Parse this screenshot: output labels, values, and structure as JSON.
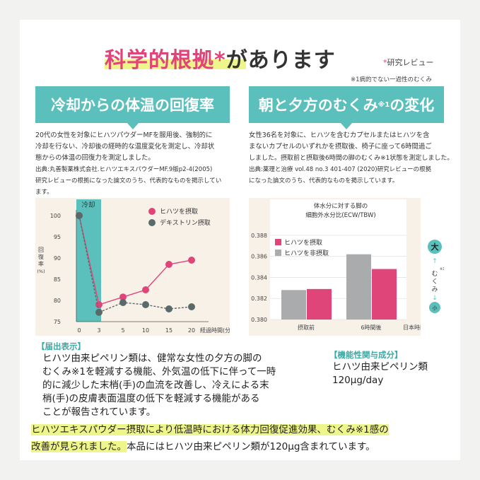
{
  "header": {
    "title_pink": "科学的根拠",
    "title_star": "*",
    "title_rest": "があります",
    "review_star": "*",
    "review_label": "研究レビュー",
    "footnote": "※1病的でない一過性のむくみ"
  },
  "left_section": {
    "banner": "冷却からの体温の回復率",
    "para_lines": [
      "20代の女性を対象にヒハツパウダーMFを服用後、強制的に",
      "冷却を行ない、冷却後の経時的な温度変化を測定し、冷却状",
      "態からの体温の回復力を測定しました。"
    ],
    "source_lines": [
      "出典:丸善製薬株式会社.ヒハツエキスパウダーMF.9版p2-4(2005)",
      "研究レビューの根拠になった論文のうち、代表的なものを掲示してい",
      "ます。"
    ]
  },
  "right_section": {
    "banner_a": "朝と夕方のむくみ",
    "banner_sup": "※1",
    "banner_b": "の変化",
    "para_lines": [
      "女性36名を対象に、ヒハツを含むカプセルまたはヒハツを含",
      "まないカプセルのいずれかを摂取後、椅子に座って6時間過ご",
      "しました。摂取前と摂取後6時間の脚のむくみ※1状態を測定しました。"
    ],
    "source_lines": [
      "出典:薬理と治療 vol.48 no.3 401-407 (2020)研究レビューの根拠",
      "になった論文のうち、代表的なものを掲示しています。"
    ]
  },
  "chart_data": [
    {
      "type": "line",
      "x": [
        0,
        3,
        5,
        10,
        15,
        20
      ],
      "xticks": [
        "0",
        "3",
        "5",
        "10",
        "15",
        "20"
      ],
      "xlabel": "経過時間(分)",
      "ylabel": "回復率(%)",
      "ylabel_chars": [
        "回",
        "復",
        "率"
      ],
      "ylabel_unit": "(%)",
      "ylim": [
        75,
        100
      ],
      "yticks": [
        75,
        80,
        85,
        90,
        95,
        100
      ],
      "shaded_region_label": "冷却",
      "shaded_region_x": [
        0,
        3
      ],
      "legend_position": "top-right",
      "series": [
        {
          "name": "ヒハツを摂取",
          "values": [
            100,
            79,
            80.8,
            82.5,
            88.5,
            89.5
          ],
          "color": "#e0457a",
          "style": "solid"
        },
        {
          "name": "デキストリン摂取",
          "values": [
            100,
            77.2,
            79.5,
            79,
            78,
            78.5
          ],
          "color": "#5a6a6a",
          "style": "dashed"
        }
      ]
    },
    {
      "type": "bar",
      "title_lines": [
        "体水分に対する脚の",
        "細胞外水分比(ECW/TBW)"
      ],
      "categories": [
        "摂取前",
        "6時間後"
      ],
      "xlabel": "日本時間",
      "ylim": [
        0.38,
        0.389
      ],
      "yticks": [
        "0.380",
        "0.382",
        "0.384",
        "0.386",
        "0.388"
      ],
      "legend_position": "top-left",
      "series": [
        {
          "name": "ヒハツを摂取",
          "values": [
            0.3829,
            0.3848
          ],
          "color": "#e0457a"
        },
        {
          "name": "ヒハツを非摂取",
          "values": [
            0.3828,
            0.3862
          ],
          "color": "#a9abad"
        }
      ],
      "side_scale": {
        "top": "大",
        "bottom": "小",
        "middle": "むくみ",
        "sup": "※1"
      }
    }
  ],
  "notice": {
    "heading": "【届出表示】",
    "lines": [
      "ヒハツ由来ピペリン類は、健常な女性の夕方の脚の",
      "むくみ※1を軽減する機能、外気温の低下に伴って一時",
      "的に減少した末梢(手)の血流を改善し、冷えによる末",
      "梢(手)の皮膚表面温度の低下を軽減する機能がある",
      "ことが報告されています。"
    ]
  },
  "ingredient": {
    "heading": "【機能性関与成分】",
    "lines": [
      "ヒハツ由来ピペリン類",
      "120μg/day"
    ]
  },
  "summary": {
    "line1_hl": "ヒハツエキスパウダー摂取により低温時における体力回復促進効果、むくみ※1感の",
    "line2_hl": "改善が見られました。",
    "line2_rest": "本品にはヒハツ由来ピペリン類が120μg含まれています。"
  }
}
